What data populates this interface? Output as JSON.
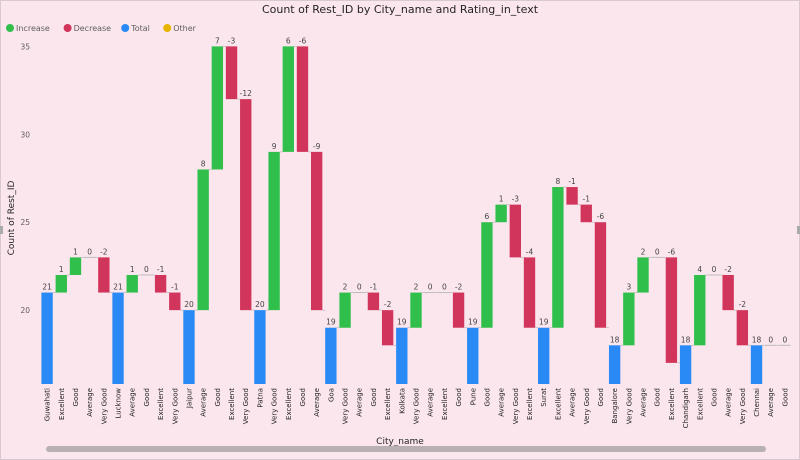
{
  "chart_data": {
    "type": "waterfall",
    "title": "Count of Rest_ID by City_name and Rating_in_text",
    "xlabel": "City_name",
    "ylabel": "Count of Rest_ID",
    "ylim": [
      15.8,
      36.5
    ],
    "yticks": [
      20,
      25,
      30,
      35
    ],
    "legend": [
      {
        "name": "Increase",
        "color": "#2fbf4a"
      },
      {
        "name": "Decrease",
        "color": "#d1355b"
      },
      {
        "name": "Total",
        "color": "#2a8af5"
      },
      {
        "name": "Other",
        "color": "#e8b400"
      }
    ],
    "legend_position": "top-left",
    "categories": [
      "Guwahati",
      "Excellent",
      "Good",
      "Average",
      "Very Good",
      "Lucknow",
      "Average",
      "Good",
      "Excellent",
      "Very Good",
      "Jaipur",
      "Average",
      "Good",
      "Excellent",
      "Very Good",
      "Patna",
      "Very Good",
      "Excellent",
      "Good",
      "Average",
      "Goa",
      "Very Good",
      "Average",
      "Good",
      "Excellent",
      "Kolkata",
      "Very Good",
      "Average",
      "Excellent",
      "Good",
      "Pune",
      "Good",
      "Average",
      "Very Good",
      "Excellent",
      "Surat",
      "Excellent",
      "Average",
      "Very Good",
      "Good",
      "Bangalore",
      "Very Good",
      "Average",
      "Good",
      "Excellent",
      "Chandigarh",
      "Excellent",
      "Good",
      "Average",
      "Very Good",
      "Chennai",
      "Average",
      "Good"
    ],
    "values": [
      21,
      1,
      1,
      0,
      -2,
      21,
      1,
      0,
      -1,
      -1,
      20,
      8,
      7,
      -3,
      -12,
      20,
      9,
      6,
      -6,
      -9,
      19,
      2,
      0,
      -1,
      -2,
      19,
      2,
      0,
      0,
      -2,
      19,
      6,
      1,
      -3,
      -4,
      19,
      8,
      -1,
      -1,
      -6,
      18,
      3,
      2,
      0,
      -6,
      18,
      4,
      0,
      -2,
      -2,
      18,
      0,
      0
    ],
    "kinds": [
      "total",
      "increase",
      "increase",
      "increase",
      "decrease",
      "total",
      "increase",
      "increase",
      "decrease",
      "decrease",
      "total",
      "increase",
      "increase",
      "decrease",
      "decrease",
      "total",
      "increase",
      "increase",
      "decrease",
      "decrease",
      "total",
      "increase",
      "increase",
      "decrease",
      "decrease",
      "total",
      "increase",
      "increase",
      "increase",
      "decrease",
      "total",
      "increase",
      "increase",
      "decrease",
      "decrease",
      "total",
      "increase",
      "decrease",
      "decrease",
      "decrease",
      "total",
      "increase",
      "increase",
      "increase",
      "decrease",
      "total",
      "increase",
      "increase",
      "decrease",
      "decrease",
      "total",
      "increase",
      "increase"
    ],
    "data_labels": [
      "21",
      "1",
      "1",
      "0",
      "-2",
      "21",
      "1",
      "0",
      "-1",
      "-1",
      "20",
      "8",
      "7",
      "-3",
      "-12",
      "20",
      "9",
      "6",
      "-6",
      "-9",
      "19",
      "2",
      "0",
      "-1",
      "-2",
      "19",
      "2",
      "0",
      "0",
      "-2",
      "19",
      "6",
      "1",
      "-3",
      "-4",
      "19",
      "8",
      "-1",
      "-1",
      "-6",
      "18",
      "3",
      "2",
      "0",
      "-6",
      "18",
      "4",
      "0",
      "-2",
      "-2",
      "18",
      "0",
      "0"
    ],
    "grid": false
  }
}
